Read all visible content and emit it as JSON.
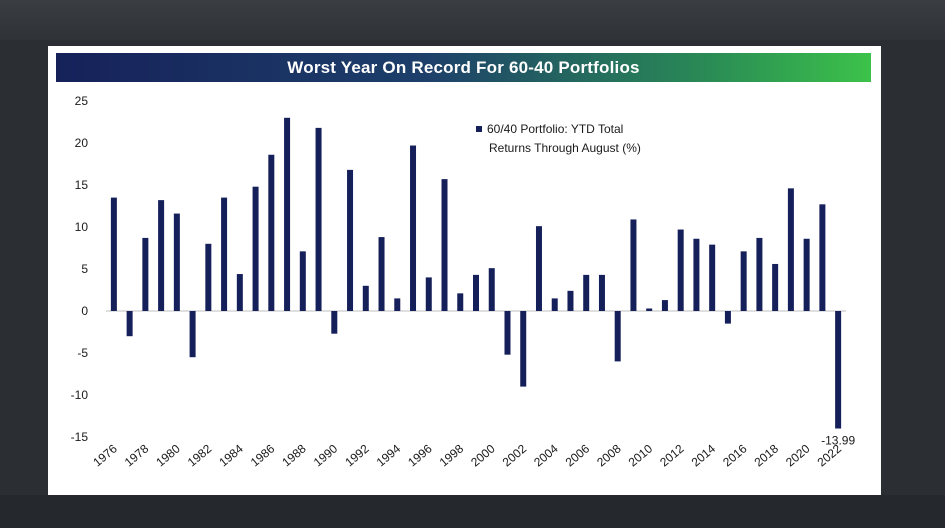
{
  "chart_data": {
    "type": "bar",
    "title": "Worst Year On Record For 60-40 Portfolios",
    "x": [
      1976,
      1977,
      1978,
      1979,
      1980,
      1981,
      1982,
      1983,
      1984,
      1985,
      1986,
      1987,
      1988,
      1989,
      1990,
      1991,
      1992,
      1993,
      1994,
      1995,
      1996,
      1997,
      1998,
      1999,
      2000,
      2001,
      2002,
      2003,
      2004,
      2005,
      2006,
      2007,
      2008,
      2009,
      2010,
      2011,
      2012,
      2013,
      2014,
      2015,
      2016,
      2017,
      2018,
      2019,
      2020,
      2021,
      2022
    ],
    "x_tick_labels": [
      "1976",
      "1978",
      "1980",
      "1982",
      "1984",
      "1986",
      "1988",
      "1990",
      "1992",
      "1994",
      "1996",
      "1998",
      "2000",
      "2002",
      "2004",
      "2006",
      "2008",
      "2010",
      "2012",
      "2014",
      "2016",
      "2018",
      "2020",
      "2022"
    ],
    "series": [
      {
        "name": "60/40 Portfolio: YTD Total Returns Through August (%)",
        "legend_lines": [
          "60/40 Portfolio: YTD Total",
          "Returns Through August (%)"
        ],
        "values": [
          13.5,
          -3.0,
          8.7,
          13.2,
          11.6,
          -5.5,
          8.0,
          13.5,
          4.4,
          14.8,
          18.6,
          23.0,
          7.1,
          21.8,
          -2.7,
          16.8,
          3.0,
          8.8,
          1.5,
          19.7,
          4.0,
          15.7,
          2.1,
          4.3,
          5.1,
          -5.2,
          -9.0,
          10.1,
          1.5,
          2.4,
          4.3,
          4.3,
          -6.0,
          10.9,
          0.3,
          1.3,
          9.7,
          8.6,
          7.9,
          -1.5,
          7.1,
          8.7,
          5.6,
          14.6,
          8.6,
          12.7,
          -13.99
        ],
        "color": "#15205a"
      }
    ],
    "data_labels": [
      {
        "x": 2022,
        "text": "-13.99"
      }
    ],
    "y_ticks": [
      25,
      20,
      15,
      10,
      5,
      0,
      -5,
      -10,
      -15
    ],
    "ylim": [
      -15,
      25
    ],
    "grid": false,
    "legend_position": "top-center",
    "xlabel": "",
    "ylabel": ""
  }
}
